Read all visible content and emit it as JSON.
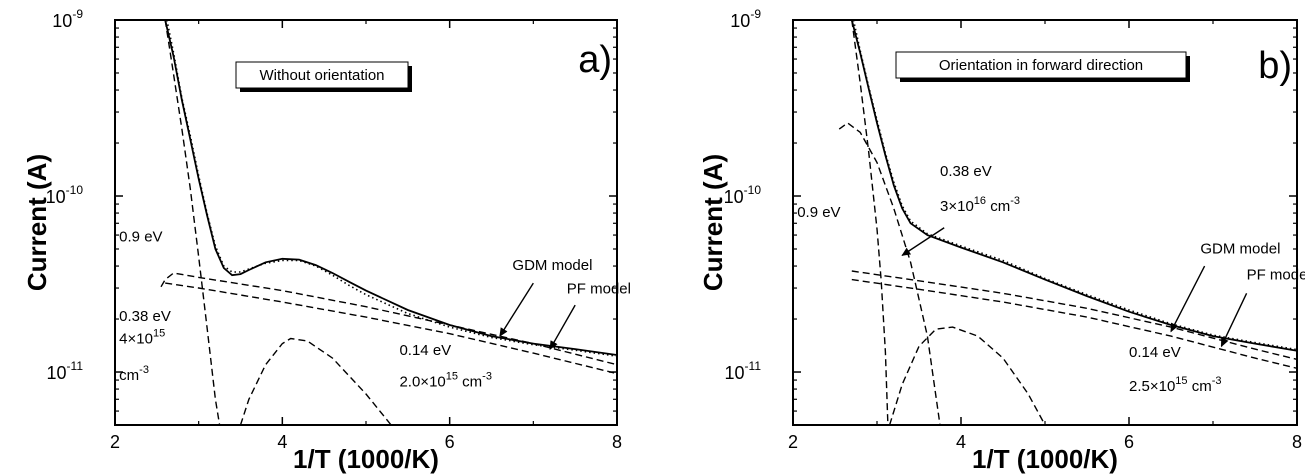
{
  "chart_data": [
    {
      "type": "line",
      "panel_label": "a)",
      "box_label": "Without orientation",
      "xlabel": "1/T (1000/K)",
      "ylabel": "Current (A)",
      "xlim": [
        2,
        8
      ],
      "ylim": [
        5e-12,
        1e-09
      ],
      "yscale": "log",
      "x_ticks": [
        "2",
        "4",
        "6",
        "8"
      ],
      "y_ticks": [
        {
          "base": "10",
          "exp": "-9",
          "value": 1e-09
        },
        {
          "base": "10",
          "exp": "-10",
          "value": 1e-10
        },
        {
          "base": "10",
          "exp": "-11",
          "value": 1e-11
        }
      ],
      "series": [
        {
          "style": "solid",
          "points": [
            [
              2.6,
              1e-09
            ],
            [
              2.7,
              6.2e-10
            ],
            [
              2.8,
              3.5e-10
            ],
            [
              2.9,
              2.1e-10
            ],
            [
              3.0,
              1.25e-10
            ],
            [
              3.1,
              7.8e-11
            ],
            [
              3.2,
              5e-11
            ],
            [
              3.3,
              3.9e-11
            ],
            [
              3.4,
              3.55e-11
            ],
            [
              3.5,
              3.6e-11
            ],
            [
              3.6,
              3.8e-11
            ],
            [
              3.8,
              4.2e-11
            ],
            [
              4.0,
              4.4e-11
            ],
            [
              4.2,
              4.35e-11
            ],
            [
              4.4,
              4.05e-11
            ],
            [
              4.6,
              3.65e-11
            ],
            [
              4.8,
              3.25e-11
            ],
            [
              5.0,
              2.9e-11
            ],
            [
              5.5,
              2.25e-11
            ],
            [
              6.0,
              1.85e-11
            ],
            [
              6.5,
              1.6e-11
            ],
            [
              7.0,
              1.45e-11
            ],
            [
              7.5,
              1.35e-11
            ],
            [
              8.0,
              1.25e-11
            ]
          ]
        },
        {
          "style": "dotted",
          "points": [
            [
              2.62,
              1e-09
            ],
            [
              2.7,
              6.5e-10
            ],
            [
              2.8,
              3.6e-10
            ],
            [
              2.9,
              2.2e-10
            ],
            [
              3.0,
              1.3e-10
            ],
            [
              3.1,
              8e-11
            ],
            [
              3.2,
              5.2e-11
            ],
            [
              3.3,
              4e-11
            ],
            [
              3.4,
              3.7e-11
            ],
            [
              3.5,
              3.7e-11
            ],
            [
              3.6,
              3.85e-11
            ],
            [
              3.8,
              4.15e-11
            ],
            [
              4.0,
              4.3e-11
            ],
            [
              4.2,
              4.3e-11
            ],
            [
              4.4,
              4e-11
            ],
            [
              4.6,
              3.55e-11
            ],
            [
              4.8,
              3.1e-11
            ],
            [
              5.0,
              2.75e-11
            ],
            [
              5.5,
              2.15e-11
            ],
            [
              6.0,
              1.8e-11
            ],
            [
              6.5,
              1.57e-11
            ],
            [
              7.0,
              1.43e-11
            ],
            [
              7.5,
              1.33e-11
            ],
            [
              8.0,
              1.23e-11
            ]
          ]
        },
        {
          "style": "dashed",
          "points": [
            [
              2.6,
              1e-09
            ],
            [
              2.7,
              4.9e-10
            ],
            [
              2.8,
              2.4e-10
            ],
            [
              2.9,
              1.1e-10
            ],
            [
              3.0,
              4.5e-11
            ],
            [
              3.1,
              1.8e-11
            ],
            [
              3.2,
              7e-12
            ],
            [
              3.25,
              5e-12
            ]
          ]
        },
        {
          "style": "dashed",
          "points": [
            [
              2.55,
              3.05e-11
            ],
            [
              2.6,
              3.35e-11
            ],
            [
              2.7,
              3.65e-11
            ],
            [
              3.0,
              3.45e-11
            ],
            [
              4.0,
              2.9e-11
            ],
            [
              5.0,
              2.35e-11
            ],
            [
              6.0,
              1.85e-11
            ],
            [
              7.0,
              1.45e-11
            ],
            [
              8.0,
              1.1e-11
            ]
          ]
        },
        {
          "style": "dashed",
          "points": [
            [
              2.6,
              3.2e-11
            ],
            [
              3.0,
              3e-11
            ],
            [
              4.0,
              2.5e-11
            ],
            [
              5.0,
              2.05e-11
            ],
            [
              6.0,
              1.65e-11
            ],
            [
              7.0,
              1.28e-11
            ],
            [
              8.0,
              9.8e-12
            ]
          ]
        },
        {
          "style": "dashed",
          "points": [
            [
              3.5,
              5e-12
            ],
            [
              3.6,
              7e-12
            ],
            [
              3.8,
              1.1e-11
            ],
            [
              4.0,
              1.45e-11
            ],
            [
              4.1,
              1.55e-11
            ],
            [
              4.3,
              1.5e-11
            ],
            [
              4.6,
              1.2e-11
            ],
            [
              5.0,
              7.5e-12
            ],
            [
              5.3,
              5e-12
            ]
          ]
        }
      ],
      "annotations": [
        {
          "text": "0.9 eV",
          "x": 2.05,
          "y": 5.5e-11
        },
        {
          "text": "0.38 eV",
          "x": 2.05,
          "y": 1.95e-11
        },
        {
          "text": "4×10",
          "sup": "15",
          "x": 2.05,
          "y": 1.45e-11
        },
        {
          "text": "cm",
          "sup": "-3",
          "x": 2.05,
          "y": 9e-12
        },
        {
          "text": "0.14 eV",
          "x": 5.4,
          "y": 1.25e-11
        },
        {
          "text": "2.0×10",
          "sup": "15",
          "after": " cm",
          "sup2": "-3",
          "x": 5.4,
          "y": 8.3e-12
        },
        {
          "text": "GDM model",
          "x": 6.75,
          "y": 3.8e-11
        },
        {
          "text": "PF model",
          "x": 7.4,
          "y": 2.8e-11
        }
      ],
      "arrows": [
        {
          "from": [
            7.0,
            3.2e-11
          ],
          "to": [
            6.6,
            1.6e-11
          ]
        },
        {
          "from": [
            7.5,
            2.4e-11
          ],
          "to": [
            7.2,
            1.35e-11
          ]
        }
      ]
    },
    {
      "type": "line",
      "panel_label": "b)",
      "box_label": "Orientation in forward direction",
      "xlabel": "1/T (1000/K)",
      "ylabel": "Current (A)",
      "xlim": [
        2,
        8
      ],
      "ylim": [
        5e-12,
        1e-09
      ],
      "yscale": "log",
      "x_ticks": [
        "2",
        "4",
        "6",
        "8"
      ],
      "y_ticks": [
        {
          "base": "10",
          "exp": "-9",
          "value": 1e-09
        },
        {
          "base": "10",
          "exp": "-10",
          "value": 1e-10
        },
        {
          "base": "10",
          "exp": "-11",
          "value": 1e-11
        }
      ],
      "series": [
        {
          "style": "solid",
          "points": [
            [
              2.7,
              1e-09
            ],
            [
              2.8,
              6.5e-10
            ],
            [
              2.9,
              4.1e-10
            ],
            [
              3.0,
              2.6e-10
            ],
            [
              3.1,
              1.7e-10
            ],
            [
              3.2,
              1.15e-10
            ],
            [
              3.3,
              8.5e-11
            ],
            [
              3.4,
              7e-11
            ],
            [
              3.6,
              6e-11
            ],
            [
              4.0,
              5.1e-11
            ],
            [
              4.5,
              4.2e-11
            ],
            [
              5.0,
              3.35e-11
            ],
            [
              5.5,
              2.7e-11
            ],
            [
              6.0,
              2.2e-11
            ],
            [
              6.5,
              1.85e-11
            ],
            [
              7.0,
              1.6e-11
            ],
            [
              7.5,
              1.45e-11
            ],
            [
              8.0,
              1.32e-11
            ]
          ]
        },
        {
          "style": "dotted",
          "points": [
            [
              2.72,
              1e-09
            ],
            [
              2.8,
              6.7e-10
            ],
            [
              2.9,
              4.2e-10
            ],
            [
              3.0,
              2.7e-10
            ],
            [
              3.1,
              1.75e-10
            ],
            [
              3.2,
              1.2e-10
            ],
            [
              3.3,
              8.8e-11
            ],
            [
              3.4,
              7.2e-11
            ],
            [
              3.6,
              6.1e-11
            ],
            [
              4.0,
              5.2e-11
            ],
            [
              4.5,
              4.3e-11
            ],
            [
              5.0,
              3.4e-11
            ],
            [
              5.5,
              2.75e-11
            ],
            [
              6.0,
              2.25e-11
            ],
            [
              6.5,
              1.88e-11
            ],
            [
              7.0,
              1.62e-11
            ],
            [
              7.5,
              1.47e-11
            ],
            [
              8.0,
              1.34e-11
            ]
          ]
        },
        {
          "style": "dashed",
          "points": [
            [
              2.7,
              1e-09
            ],
            [
              2.8,
              4.4e-10
            ],
            [
              2.9,
              1.8e-10
            ],
            [
              3.0,
              6.5e-11
            ],
            [
              3.05,
              3.3e-11
            ],
            [
              3.1,
              1.3e-11
            ],
            [
              3.13,
              5e-12
            ]
          ]
        },
        {
          "style": "dashed",
          "points": [
            [
              2.55,
              2.4e-10
            ],
            [
              2.65,
              2.6e-10
            ],
            [
              2.8,
              2.3e-10
            ],
            [
              3.0,
              1.55e-10
            ],
            [
              3.2,
              8.5e-11
            ],
            [
              3.4,
              4.2e-11
            ],
            [
              3.6,
              1.6e-11
            ],
            [
              3.75,
              5e-12
            ]
          ]
        },
        {
          "style": "dashed",
          "points": [
            [
              2.7,
              3.75e-11
            ],
            [
              3.5,
              3.3e-11
            ],
            [
              4.5,
              2.8e-11
            ],
            [
              5.5,
              2.3e-11
            ],
            [
              6.5,
              1.8e-11
            ],
            [
              7.5,
              1.35e-11
            ],
            [
              8.0,
              1.18e-11
            ]
          ]
        },
        {
          "style": "dashed",
          "points": [
            [
              2.7,
              3.35e-11
            ],
            [
              3.5,
              2.95e-11
            ],
            [
              4.5,
              2.5e-11
            ],
            [
              5.5,
              2.05e-11
            ],
            [
              6.5,
              1.6e-11
            ],
            [
              7.5,
              1.2e-11
            ],
            [
              8.0,
              1.05e-11
            ]
          ]
        },
        {
          "style": "dashed",
          "points": [
            [
              3.15,
              5e-12
            ],
            [
              3.3,
              8.5e-12
            ],
            [
              3.5,
              1.4e-11
            ],
            [
              3.7,
              1.75e-11
            ],
            [
              3.9,
              1.8e-11
            ],
            [
              4.2,
              1.6e-11
            ],
            [
              4.5,
              1.2e-11
            ],
            [
              4.8,
              7.5e-12
            ],
            [
              5.0,
              5e-12
            ]
          ]
        }
      ],
      "annotations": [
        {
          "text": "0.9 eV",
          "x": 2.05,
          "y": 7.6e-11
        },
        {
          "text": "0.38 eV",
          "x": 3.75,
          "y": 1.3e-10
        },
        {
          "text": "3×10",
          "sup": "16",
          "after": " cm",
          "sup2": "-3",
          "x": 3.75,
          "y": 8.2e-11
        },
        {
          "text": "0.14 eV",
          "x": 6.0,
          "y": 1.22e-11
        },
        {
          "text": "2.5×10",
          "sup": "15",
          "after": " cm",
          "sup2": "-3",
          "x": 6.0,
          "y": 7.8e-12
        },
        {
          "text": "GDM model",
          "x": 6.85,
          "y": 4.7e-11
        },
        {
          "text": "PF model",
          "x": 7.4,
          "y": 3.35e-11
        }
      ],
      "arrows": [
        {
          "from": [
            3.8,
            6.6e-11
          ],
          "to": [
            3.3,
            4.6e-11
          ]
        },
        {
          "from": [
            6.9,
            4e-11
          ],
          "to": [
            6.5,
            1.7e-11
          ]
        },
        {
          "from": [
            7.4,
            2.8e-11
          ],
          "to": [
            7.1,
            1.4e-11
          ]
        }
      ]
    }
  ]
}
